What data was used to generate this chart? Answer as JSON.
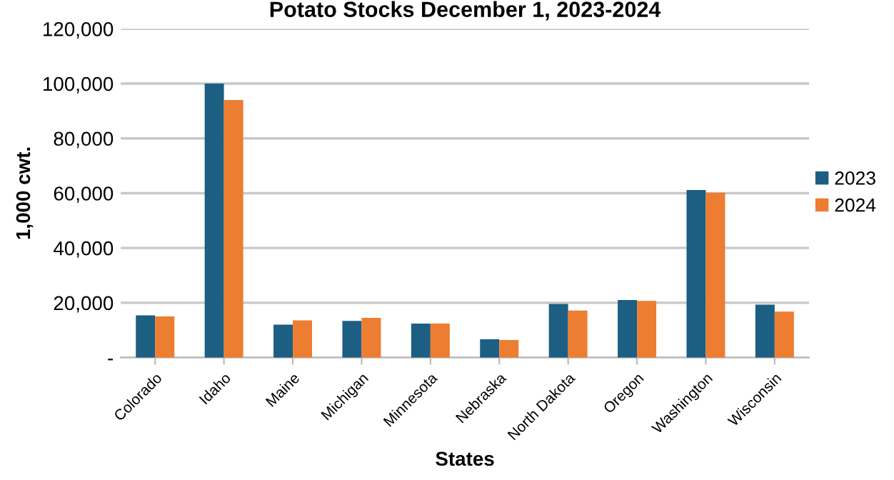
{
  "chart_data": {
    "type": "bar",
    "title": "Potato Stocks December 1, 2023-2024",
    "xlabel": "States",
    "ylabel": "1,000 cwt.",
    "categories": [
      "Colorado",
      "Idaho",
      "Maine",
      "Michigan",
      "Minnesota",
      "Nebraska",
      "North Dakota",
      "Oregon",
      "Washington",
      "Wisconsin"
    ],
    "series": [
      {
        "name": "2023",
        "color": "#1c5f82",
        "values": [
          15400,
          100000,
          12000,
          13400,
          12400,
          6700,
          19600,
          21000,
          61200,
          19300
        ]
      },
      {
        "name": "2024",
        "color": "#ed7d31",
        "values": [
          15000,
          94000,
          13600,
          14500,
          12400,
          6400,
          17200,
          20700,
          60200,
          16800
        ]
      }
    ],
    "ylim": [
      0,
      120000
    ],
    "yticks": [
      {
        "value": 0,
        "label": "-"
      },
      {
        "value": 20000,
        "label": "20,000"
      },
      {
        "value": 40000,
        "label": "40,000"
      },
      {
        "value": 60000,
        "label": "60,000"
      },
      {
        "value": 80000,
        "label": "80,000"
      },
      {
        "value": 100000,
        "label": "100,000"
      },
      {
        "value": 120000,
        "label": "120,000"
      }
    ],
    "grid": "y",
    "legend": "right"
  }
}
